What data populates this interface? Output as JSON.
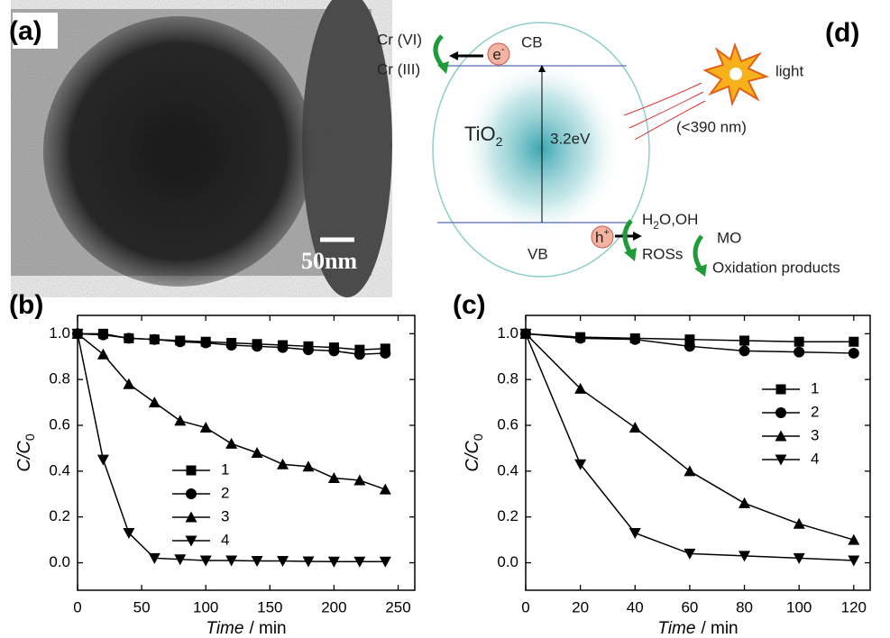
{
  "panel_labels": [
    "(a)",
    "(b)",
    "(c)",
    "(d)"
  ],
  "tem": {
    "scale": "50nm"
  },
  "diagram": {
    "cr6": "Cr (VI)",
    "cr3": "Cr (III)",
    "electron": {
      "text": "e",
      "sup": "-"
    },
    "cb": "CB",
    "vb": "VB",
    "material": {
      "text": "TiO",
      "sub": "2"
    },
    "gap": "3.2eV",
    "hole": {
      "text": "h",
      "sup": "+"
    },
    "light": "light",
    "wavelength": "(<390 nm)",
    "water": {
      "pre": "H",
      "sub": "2",
      "post": "O,OH"
    },
    "ros": "ROSs",
    "mo": "MO",
    "products": "Oxidation products"
  },
  "chart_data": [
    {
      "type": "line",
      "x_label": "Time",
      "x_unit": "/ min",
      "y_label": {
        "text": "C/C",
        "sub": "0"
      },
      "x": [
        0,
        20,
        40,
        60,
        80,
        100,
        120,
        140,
        160,
        180,
        200,
        220,
        240
      ],
      "series": [
        {
          "name": "1",
          "color": "#000000",
          "marker": "square",
          "values": [
            1.0,
            1.0,
            0.98,
            0.975,
            0.97,
            0.965,
            0.96,
            0.955,
            0.95,
            0.945,
            0.94,
            0.93,
            0.935
          ]
        },
        {
          "name": "2",
          "color": "#000000",
          "marker": "circle",
          "values": [
            1.0,
            0.995,
            0.98,
            0.975,
            0.965,
            0.96,
            0.95,
            0.945,
            0.94,
            0.93,
            0.925,
            0.91,
            0.915
          ]
        },
        {
          "name": "3",
          "color": "#000000",
          "marker": "triangle-up",
          "values": [
            1.0,
            0.91,
            0.78,
            0.7,
            0.62,
            0.59,
            0.52,
            0.48,
            0.43,
            0.42,
            0.37,
            0.36,
            0.32
          ]
        },
        {
          "name": "4",
          "color": "#000000",
          "marker": "triangle-down",
          "values": [
            1.0,
            0.45,
            0.13,
            0.02,
            0.015,
            0.01,
            0.01,
            0.008,
            0.008,
            0.006,
            0.005,
            0.005,
            0.005
          ]
        }
      ],
      "xlim": [
        0,
        263
      ],
      "xticks": [
        0,
        50,
        100,
        150,
        200,
        250
      ],
      "ylim": [
        -0.12,
        1.08
      ],
      "yticks": [
        {
          "value": 0,
          "label": "0.0"
        },
        {
          "value": 0.2,
          "label": "0.2"
        },
        {
          "value": 0.4,
          "label": "0.4"
        },
        {
          "value": 0.6,
          "label": "0.6"
        },
        {
          "value": 0.8,
          "label": "0.8"
        },
        {
          "value": 1,
          "label": "1.0"
        }
      ],
      "legend": "center left"
    },
    {
      "type": "line",
      "x_label": "Time",
      "x_unit": "/ min",
      "y_label": {
        "text": "C/C",
        "sub": "0"
      },
      "x": [
        0,
        20,
        40,
        60,
        80,
        100,
        120
      ],
      "series": [
        {
          "name": "1",
          "color": "#000000",
          "marker": "square",
          "values": [
            1.0,
            0.985,
            0.98,
            0.975,
            0.97,
            0.965,
            0.965
          ]
        },
        {
          "name": "2",
          "color": "#000000",
          "marker": "circle",
          "values": [
            1.0,
            0.98,
            0.975,
            0.945,
            0.925,
            0.92,
            0.915
          ]
        },
        {
          "name": "3",
          "color": "#000000",
          "marker": "triangle-up",
          "values": [
            1.0,
            0.76,
            0.59,
            0.4,
            0.26,
            0.17,
            0.1
          ]
        },
        {
          "name": "4",
          "color": "#000000",
          "marker": "triangle-down",
          "values": [
            1.0,
            0.43,
            0.13,
            0.04,
            0.03,
            0.02,
            0.01
          ]
        }
      ],
      "xlim": [
        0,
        126
      ],
      "xticks": [
        0,
        20,
        40,
        60,
        80,
        100,
        120
      ],
      "ylim": [
        -0.12,
        1.08
      ],
      "yticks": [
        {
          "value": 0,
          "label": "0.0"
        },
        {
          "value": 0.2,
          "label": "0.2"
        },
        {
          "value": 0.4,
          "label": "0.4"
        },
        {
          "value": 0.6,
          "label": "0.6"
        },
        {
          "value": 0.8,
          "label": "0.8"
        },
        {
          "value": 1,
          "label": "1.0"
        }
      ],
      "legend": "center right"
    }
  ]
}
